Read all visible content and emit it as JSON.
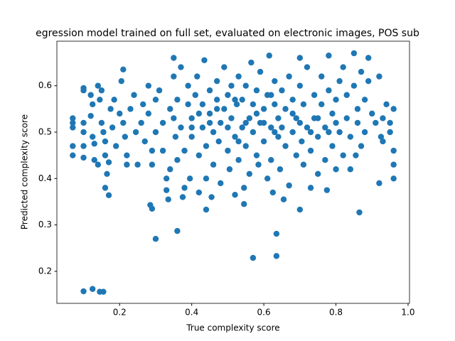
{
  "chart_data": {
    "type": "scatter",
    "title": "egression model trained on full set, evaluated on electronic images, POS sub",
    "x_label": "True complexity score",
    "y_label": "Predicted complexity score",
    "color": "#1f77b4",
    "grid": false,
    "xlim": [
      0.026,
      1.004
    ],
    "ylim": [
      0.131,
      0.696
    ],
    "xticks": [
      0.2,
      0.4,
      0.6,
      0.8,
      {
        "value": 1,
        "label": "1.0"
      }
    ],
    "yticks": [
      0.2,
      0.3,
      0.4,
      0.5,
      0.6
    ],
    "x": [
      0.07,
      0.07,
      0.07,
      0.07,
      0.07,
      0.1,
      0.1,
      0.1,
      0.1,
      0.1,
      0.1,
      0.1,
      0.125,
      0.145,
      0.155,
      0.3,
      0.36,
      0.57,
      0.635,
      0.635,
      0.865,
      0.29,
      0.285,
      0.7,
      0.545,
      0.44,
      0.17,
      0.92,
      0.96,
      0.96,
      0.96,
      0.96,
      0.95,
      0.95,
      0.12,
      0.125,
      0.12,
      0.125,
      0.13,
      0.13,
      0.14,
      0.14,
      0.145,
      0.15,
      0.15,
      0.155,
      0.16,
      0.16,
      0.16,
      0.165,
      0.17,
      0.175,
      0.18,
      0.185,
      0.19,
      0.2,
      0.205,
      0.21,
      0.21,
      0.215,
      0.22,
      0.22,
      0.23,
      0.24,
      0.245,
      0.25,
      0.26,
      0.265,
      0.27,
      0.28,
      0.28,
      0.29,
      0.29,
      0.3,
      0.3,
      0.31,
      0.32,
      0.32,
      0.33,
      0.33,
      0.335,
      0.34,
      0.34,
      0.35,
      0.35,
      0.355,
      0.36,
      0.36,
      0.37,
      0.37,
      0.375,
      0.38,
      0.38,
      0.39,
      0.39,
      0.395,
      0.4,
      0.4,
      0.41,
      0.415,
      0.42,
      0.42,
      0.43,
      0.43,
      0.435,
      0.44,
      0.44,
      0.45,
      0.45,
      0.455,
      0.46,
      0.46,
      0.47,
      0.47,
      0.475,
      0.48,
      0.48,
      0.49,
      0.49,
      0.5,
      0.5,
      0.505,
      0.51,
      0.51,
      0.52,
      0.52,
      0.525,
      0.53,
      0.53,
      0.54,
      0.54,
      0.545,
      0.55,
      0.55,
      0.56,
      0.56,
      0.565,
      0.57,
      0.57,
      0.58,
      0.58,
      0.585,
      0.59,
      0.59,
      0.6,
      0.6,
      0.61,
      0.61,
      0.615,
      0.62,
      0.62,
      0.625,
      0.63,
      0.63,
      0.64,
      0.64,
      0.645,
      0.65,
      0.655,
      0.66,
      0.66,
      0.67,
      0.67,
      0.68,
      0.68,
      0.69,
      0.69,
      0.7,
      0.7,
      0.705,
      0.71,
      0.71,
      0.72,
      0.72,
      0.73,
      0.73,
      0.74,
      0.74,
      0.75,
      0.75,
      0.76,
      0.76,
      0.77,
      0.77,
      0.775,
      0.78,
      0.78,
      0.79,
      0.79,
      0.8,
      0.8,
      0.81,
      0.81,
      0.82,
      0.82,
      0.83,
      0.83,
      0.84,
      0.84,
      0.85,
      0.85,
      0.855,
      0.86,
      0.86,
      0.87,
      0.87,
      0.88,
      0.88,
      0.89,
      0.89,
      0.9,
      0.91,
      0.92,
      0.925,
      0.93,
      0.93,
      0.94,
      0.45,
      0.5,
      0.55,
      0.6,
      0.65,
      0.7,
      0.75,
      0.4,
      0.35,
      0.8,
      0.47,
      0.53,
      0.58,
      0.63,
      0.68,
      0.73,
      0.78,
      0.42,
      0.62,
      0.52
    ],
    "values": [
      0.53,
      0.52,
      0.51,
      0.47,
      0.45,
      0.595,
      0.59,
      0.52,
      0.5,
      0.47,
      0.445,
      0.157,
      0.162,
      0.156,
      0.156,
      0.27,
      0.287,
      0.229,
      0.233,
      0.281,
      0.327,
      0.335,
      0.343,
      0.333,
      0.345,
      0.333,
      0.364,
      0.39,
      0.4,
      0.43,
      0.46,
      0.55,
      0.5,
      0.52,
      0.58,
      0.56,
      0.535,
      0.49,
      0.475,
      0.44,
      0.43,
      0.6,
      0.57,
      0.59,
      0.52,
      0.5,
      0.48,
      0.45,
      0.38,
      0.41,
      0.435,
      0.55,
      0.51,
      0.57,
      0.47,
      0.54,
      0.61,
      0.635,
      0.52,
      0.49,
      0.45,
      0.43,
      0.55,
      0.58,
      0.5,
      0.43,
      0.52,
      0.56,
      0.48,
      0.6,
      0.54,
      0.46,
      0.43,
      0.5,
      0.57,
      0.59,
      0.52,
      0.46,
      0.4,
      0.375,
      0.355,
      0.42,
      0.55,
      0.62,
      0.66,
      0.49,
      0.44,
      0.57,
      0.64,
      0.51,
      0.36,
      0.38,
      0.46,
      0.56,
      0.6,
      0.4,
      0.53,
      0.49,
      0.58,
      0.62,
      0.37,
      0.45,
      0.51,
      0.56,
      0.655,
      0.4,
      0.47,
      0.54,
      0.59,
      0.36,
      0.5,
      0.43,
      0.57,
      0.61,
      0.48,
      0.52,
      0.39,
      0.55,
      0.64,
      0.46,
      0.58,
      0.42,
      0.53,
      0.6,
      0.49,
      0.365,
      0.56,
      0.44,
      0.62,
      0.51,
      0.57,
      0.38,
      0.47,
      0.6,
      0.53,
      0.41,
      0.65,
      0.5,
      0.56,
      0.45,
      0.59,
      0.43,
      0.52,
      0.63,
      0.48,
      0.55,
      0.4,
      0.58,
      0.665,
      0.51,
      0.44,
      0.37,
      0.56,
      0.61,
      0.49,
      0.53,
      0.42,
      0.59,
      0.355,
      0.47,
      0.55,
      0.62,
      0.385,
      0.5,
      0.57,
      0.45,
      0.53,
      0.6,
      0.66,
      0.48,
      0.43,
      0.56,
      0.51,
      0.64,
      0.38,
      0.46,
      0.58,
      0.53,
      0.41,
      0.49,
      0.62,
      0.56,
      0.44,
      0.51,
      0.375,
      0.59,
      0.665,
      0.47,
      0.54,
      0.42,
      0.57,
      0.61,
      0.5,
      0.45,
      0.64,
      0.53,
      0.58,
      0.42,
      0.49,
      0.6,
      0.67,
      0.45,
      0.55,
      0.52,
      0.63,
      0.47,
      0.57,
      0.5,
      0.61,
      0.66,
      0.54,
      0.52,
      0.62,
      0.49,
      0.53,
      0.48,
      0.56,
      0.52,
      0.51,
      0.52,
      0.52,
      0.51,
      0.52,
      0.53,
      0.51,
      0.53,
      0.52,
      0.55,
      0.48,
      0.54,
      0.5,
      0.54,
      0.5,
      0.5,
      0.54,
      0.58,
      0.57
    ]
  }
}
